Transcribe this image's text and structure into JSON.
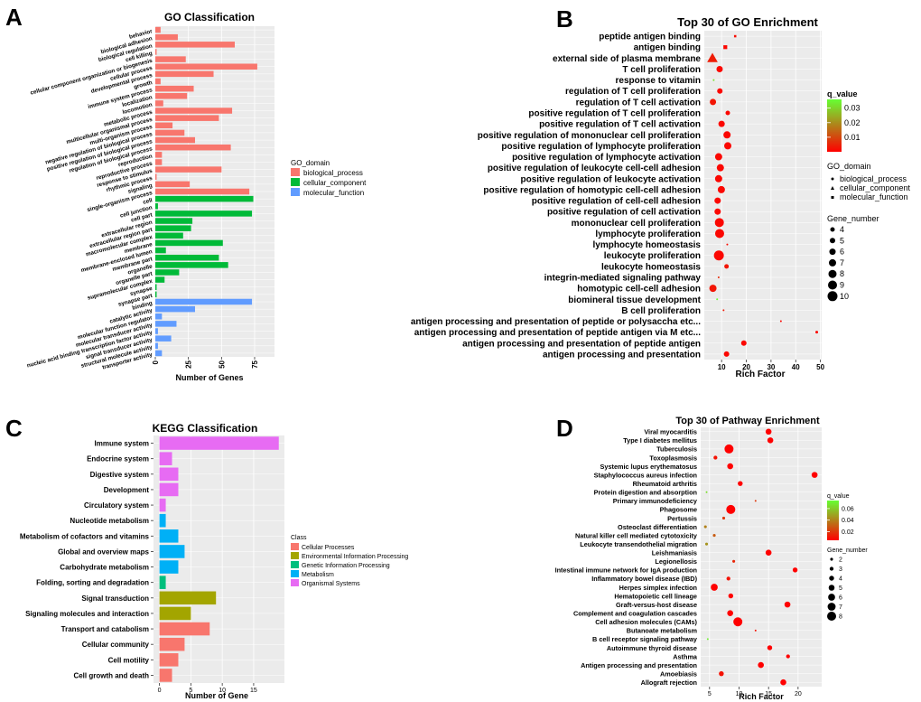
{
  "colors": {
    "panel_bg": "#ebebeb",
    "grid": "#ffffff",
    "bp": "#f8766d",
    "cc": "#00ba38",
    "mf": "#619cff",
    "kegg_cellular": "#f8766d",
    "kegg_env": "#a3a500",
    "kegg_genetic": "#00bf7d",
    "kegg_metabolism": "#00b0f6",
    "kegg_organismal": "#e76bf3",
    "grad_low": "#ff0000",
    "grad_high": "#66ff33"
  },
  "panel_letters": {
    "a": "A",
    "b": "B",
    "c": "C",
    "d": "D"
  },
  "chart_data": [
    {
      "id": "A",
      "type": "bar",
      "orientation": "horizontal",
      "title": "GO Classification",
      "xlabel": "Number of Genes",
      "xlim": [
        0,
        90
      ],
      "xticks": [
        0,
        25,
        50,
        75
      ],
      "xtick_labels": [
        "0",
        "25",
        "50",
        "75"
      ],
      "legend_title": "GO_domain",
      "legend_labels": [
        "biological_process",
        "cellular_component",
        "molecular_function"
      ],
      "categories": [
        "behavior",
        "biological adhesion",
        "biological regulation",
        "cell killing",
        "cellular component organization or biogenesis",
        "cellular process",
        "developmental process",
        "growth",
        "immune system process",
        "localization",
        "locomotion",
        "metabolic process",
        "multicellular organismal process",
        "multi-organism process",
        "negative regulation of biological process",
        "positive regulation of biological process",
        "regulation of biological process",
        "reproduction",
        "reproductive process",
        "response to stimulus",
        "rhythmic process",
        "signaling",
        "single-organism process",
        "cell",
        "cell junction",
        "cell part",
        "extracellular region",
        "extracellular region part",
        "macromolecular complex",
        "membrane",
        "membrane-enclosed lumen",
        "membrane part",
        "organelle",
        "organelle part",
        "supramolecular complex",
        "synapse",
        "synapse part",
        "binding",
        "catalytic activity",
        "molecular function regulator",
        "molecular transducer activity",
        "nucleic acid binding transcription factor activity",
        "signal transducer activity",
        "structural molecule activity",
        "transporter activity"
      ],
      "values": [
        4,
        17,
        60,
        1,
        23,
        77,
        44,
        4,
        29,
        24,
        6,
        58,
        48,
        13,
        22,
        30,
        57,
        5,
        5,
        50,
        1,
        26,
        71,
        74,
        2,
        73,
        28,
        27,
        21,
        51,
        8,
        48,
        55,
        18,
        7,
        1,
        1,
        73,
        30,
        5,
        16,
        2,
        12,
        2,
        5
      ],
      "domains": [
        "bp",
        "bp",
        "bp",
        "bp",
        "bp",
        "bp",
        "bp",
        "bp",
        "bp",
        "bp",
        "bp",
        "bp",
        "bp",
        "bp",
        "bp",
        "bp",
        "bp",
        "bp",
        "bp",
        "bp",
        "bp",
        "bp",
        "bp",
        "cc",
        "cc",
        "cc",
        "cc",
        "cc",
        "cc",
        "cc",
        "cc",
        "cc",
        "cc",
        "cc",
        "cc",
        "cc",
        "cc",
        "mf",
        "mf",
        "mf",
        "mf",
        "mf",
        "mf",
        "mf",
        "mf"
      ]
    },
    {
      "id": "B",
      "type": "scatter",
      "title": "Top 30 of GO Enrichment",
      "xlabel": "Rich Factor",
      "xlim": [
        3,
        50.5
      ],
      "xticks": [
        10,
        20,
        30,
        40,
        50
      ],
      "xtick_labels": [
        "10",
        "20",
        "30",
        "40",
        "50"
      ],
      "legend_q_title": "q_value",
      "legend_q_labels": [
        "0.03",
        "0.02",
        "0.01"
      ],
      "legend_q_values": [
        0.03,
        0.02,
        0.01
      ],
      "q_range": [
        0.0,
        0.036
      ],
      "legend_domain_title": "GO_domain",
      "legend_domain_labels": [
        "biological_process",
        "cellular_component",
        "molecular_function"
      ],
      "legend_size_title": "Gene_number",
      "legend_size_labels": [
        "4",
        "5",
        "6",
        "7",
        "8",
        "9",
        "10"
      ],
      "legend_size_values": [
        4,
        5,
        6,
        7,
        8,
        9,
        10
      ],
      "size_domain": [
        1,
        10
      ],
      "terms": [
        "peptide antigen binding",
        "antigen binding",
        "external side of plasma membrane",
        "T cell proliferation",
        "response to vitamin",
        "regulation of T cell proliferation",
        "regulation of T cell activation",
        "positive regulation of T cell proliferation",
        "positive regulation of T cell activation",
        "positive regulation of mononuclear cell proliferation",
        "positive regulation of lymphocyte proliferation",
        "positive regulation of lymphocyte activation",
        "positive regulation of leukocyte cell-cell adhesion",
        "positive regulation of leukocyte activation",
        "positive regulation of homotypic cell-cell adhesion",
        "positive regulation of cell-cell adhesion",
        "positive regulation of cell activation",
        "mononuclear cell proliferation",
        "lymphocyte proliferation",
        "lymphocyte homeostasis",
        "leukocyte proliferation",
        "leukocyte homeostasis",
        "integrin-mediated signaling pathway",
        "homotypic cell-cell adhesion",
        "biomineral tissue development",
        "B cell proliferation",
        "antigen processing and presentation of peptide or polysaccha etc...",
        "antigen processing and presentation of peptide antigen via M etc...",
        "antigen processing and presentation of peptide antigen",
        "antigen processing and presentation"
      ],
      "rich_factor": [
        15.5,
        11.5,
        6.3,
        9.2,
        6.8,
        9.3,
        6.5,
        12.5,
        10.0,
        12.2,
        12.5,
        8.8,
        9.5,
        8.8,
        9.9,
        8.4,
        8.4,
        9.1,
        9.2,
        12.3,
        8.9,
        12.0,
        8.8,
        6.5,
        8.2,
        10.8,
        34.0,
        48.5,
        19.0,
        12.0
      ],
      "gene_number": [
        2,
        4,
        8,
        6,
        1,
        5,
        6,
        4,
        6,
        7,
        7,
        7,
        7,
        7,
        7,
        6,
        6,
        9,
        9,
        1,
        10,
        4,
        1,
        7,
        1,
        1,
        1,
        2,
        5,
        5
      ],
      "q_value": [
        0.002,
        0.001,
        0.004,
        0.001,
        0.032,
        0.001,
        0.003,
        0.001,
        0.001,
        0.001,
        0.001,
        0.001,
        0.001,
        0.001,
        0.001,
        0.001,
        0.001,
        0.001,
        0.001,
        0.002,
        0.001,
        0.003,
        0.006,
        0.003,
        0.036,
        0.004,
        0.001,
        0.001,
        0.001,
        0.001
      ],
      "domain": [
        "mf",
        "mf",
        "cc",
        "bp",
        "bp",
        "bp",
        "bp",
        "bp",
        "bp",
        "bp",
        "bp",
        "bp",
        "bp",
        "bp",
        "bp",
        "bp",
        "bp",
        "bp",
        "bp",
        "bp",
        "bp",
        "bp",
        "bp",
        "bp",
        "bp",
        "bp",
        "bp",
        "bp",
        "bp",
        "bp"
      ]
    },
    {
      "id": "C",
      "type": "bar",
      "orientation": "horizontal",
      "title": "KEGG Classification",
      "xlabel": "Number of Gene",
      "xlim": [
        -0.95,
        19.9
      ],
      "xticks": [
        0,
        5,
        10,
        15
      ],
      "xtick_labels": [
        "0",
        "5",
        "10",
        "15"
      ],
      "legend_title": "Class",
      "legend_labels": [
        "Cellular Processes",
        "Environmental Information Processing",
        "Genetic Information Processing",
        "Metabolism",
        "Organismal Systems"
      ],
      "categories": [
        "Immune system",
        "Endocrine system",
        "Digestive system",
        "Development",
        "Circulatory system",
        "Nucleotide metabolism",
        "Metabolism of cofactors and vitamins",
        "Global and overview maps",
        "Carbohydrate metabolism",
        "Folding, sorting and degradation",
        "Signal transduction",
        "Signaling molecules and interaction",
        "Transport and catabolism",
        "Cellular community",
        "Cell motility",
        "Cell growth and death"
      ],
      "values": [
        19,
        2,
        3,
        3,
        1,
        1,
        3,
        4,
        3,
        1,
        9,
        5,
        8,
        4,
        3,
        2
      ],
      "classes": [
        "organismal",
        "organismal",
        "organismal",
        "organismal",
        "organismal",
        "metabolism",
        "metabolism",
        "metabolism",
        "metabolism",
        "genetic",
        "env",
        "env",
        "cellular",
        "cellular",
        "cellular",
        "cellular"
      ]
    },
    {
      "id": "D",
      "type": "scatter",
      "title": "Top 30 of Pathway Enrichment",
      "xlabel": "Rich Factor",
      "xlim": [
        3.5,
        24
      ],
      "xticks": [
        5,
        10,
        15,
        20
      ],
      "xtick_labels": [
        "5",
        "10",
        "15",
        "20"
      ],
      "legend_q_title": "q_value",
      "legend_q_labels": [
        "0.06",
        "0.04",
        "0.02"
      ],
      "legend_q_values": [
        0.06,
        0.04,
        0.02
      ],
      "q_range": [
        0.005,
        0.074
      ],
      "legend_size_title": "Gene_number",
      "legend_size_labels": [
        "2",
        "3",
        "4",
        "5",
        "6",
        "7",
        "8"
      ],
      "legend_size_values": [
        2,
        3,
        4,
        5,
        6,
        7,
        8
      ],
      "size_domain": [
        1,
        8
      ],
      "terms": [
        "Viral myocarditis",
        "Type I diabetes mellitus",
        "Tuberculosis",
        "Toxoplasmosis",
        "Systemic lupus erythematosus",
        "Staphylococcus aureus infection",
        "Rheumatoid arthritis",
        "Protein digestion and absorption",
        "Primary immunodeficiency",
        "Phagosome",
        "Pertussis",
        "Osteoclast differentiation",
        "Natural killer cell mediated cytotoxicity",
        "Leukocyte transendothelial migration",
        "Leishmaniasis",
        "Legionellosis",
        "Intestinal immune network for IgA production",
        "Inflammatory bowel disease (IBD)",
        "Herpes simplex infection",
        "Hematopoietic cell lineage",
        "Graft-versus-host disease",
        "Complement and coagulation cascades",
        "Cell adhesion molecules (CAMs)",
        "Butanoate metabolism",
        "B cell receptor signaling pathway",
        "Autoimmune thyroid disease",
        "Asthma",
        "Antigen processing and presentation",
        "Amoebiasis",
        "Allograft rejection"
      ],
      "rich_factor": [
        15.0,
        15.3,
        8.3,
        6.0,
        8.5,
        22.8,
        10.2,
        4.5,
        12.8,
        8.6,
        7.4,
        4.3,
        5.8,
        4.5,
        15.0,
        9.1,
        19.5,
        8.2,
        5.8,
        8.6,
        18.2,
        8.5,
        9.8,
        12.8,
        4.7,
        15.2,
        18.3,
        13.7,
        7.0,
        17.5
      ],
      "gene_number": [
        5,
        5,
        8,
        3,
        5,
        5,
        4,
        1,
        1,
        8,
        2,
        2,
        2,
        2,
        5,
        2,
        4,
        3,
        6,
        4,
        5,
        5,
        8,
        1,
        1,
        4,
        3,
        5,
        4,
        5
      ],
      "q_value": [
        0.005,
        0.005,
        0.005,
        0.01,
        0.005,
        0.005,
        0.005,
        0.065,
        0.02,
        0.005,
        0.02,
        0.04,
        0.03,
        0.045,
        0.005,
        0.015,
        0.005,
        0.01,
        0.005,
        0.005,
        0.005,
        0.005,
        0.005,
        0.01,
        0.07,
        0.005,
        0.005,
        0.005,
        0.01,
        0.005
      ]
    }
  ]
}
